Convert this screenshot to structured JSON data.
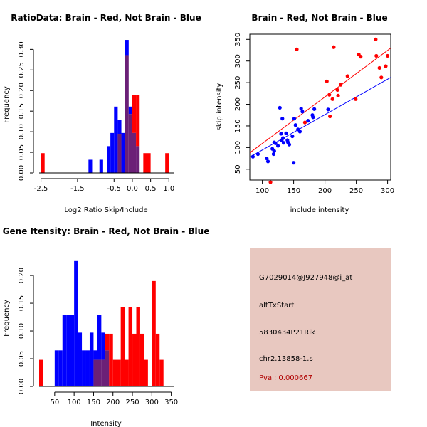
{
  "colors": {
    "red": "#ff0000",
    "blue": "#0000ff",
    "purple": "#6b2077",
    "panel_bg": "#e8c8c0",
    "pval": "#b00000"
  },
  "info_panel": {
    "probe": "G7029014@J927948@i_at",
    "event": "altTxStart",
    "gene": "5830434P21Rik",
    "locus": "chr2.13858-1.s",
    "pval": "Pval: 0.000667"
  },
  "chart_data": [
    {
      "id": "ratio",
      "type": "bar",
      "title": "RatioData: Brain - Red, Not Brain - Blue",
      "xlabel": "Log2 Ratio Skip/Include",
      "ylabel": "Frequency",
      "xlim": [
        -2.55,
        1.15
      ],
      "ylim": [
        0,
        0.33
      ],
      "xticks": [
        -2.5,
        -1.5,
        -0.5,
        0.0,
        0.5,
        1.0
      ],
      "xtick_labels": [
        "-2.5",
        "-1.5",
        "-0.5",
        "0.0",
        "0.5",
        "1.0"
      ],
      "yticks": [
        0.0,
        0.05,
        0.1,
        0.15,
        0.2,
        0.25,
        0.3
      ],
      "ytick_labels": [
        "0.00",
        "0.05",
        "0.10",
        "0.15",
        "0.20",
        "0.25",
        "0.30"
      ],
      "bin_width": 0.1,
      "series": [
        {
          "name": "Not Brain",
          "color": "blue",
          "bins": [
            [
              -1.2,
              0.032
            ],
            [
              -0.9,
              0.032
            ],
            [
              -0.7,
              0.065
            ],
            [
              -0.6,
              0.097
            ],
            [
              -0.5,
              0.161
            ],
            [
              -0.4,
              0.129
            ],
            [
              -0.3,
              0.097
            ],
            [
              -0.2,
              0.323
            ],
            [
              -0.1,
              0.161
            ],
            [
              0.0,
              0.097
            ],
            [
              0.1,
              0.065
            ]
          ]
        },
        {
          "name": "Brain",
          "color": "red",
          "bins": [
            [
              -2.5,
              0.048
            ],
            [
              -0.4,
              0.095
            ],
            [
              -0.2,
              0.286
            ],
            [
              -0.1,
              0.143
            ],
            [
              0.0,
              0.19
            ],
            [
              0.1,
              0.19
            ],
            [
              0.3,
              0.048
            ],
            [
              0.4,
              0.048
            ],
            [
              0.9,
              0.048
            ]
          ]
        }
      ]
    },
    {
      "id": "scatter",
      "type": "scatter",
      "title": "Brain - Red, Not Brain - Blue",
      "xlabel": "include intensity",
      "ylabel": "skip intensity",
      "xlim": [
        80,
        305
      ],
      "ylim": [
        25,
        362
      ],
      "xticks": [
        100,
        150,
        200,
        250,
        300
      ],
      "xtick_labels": [
        "100",
        "150",
        "200",
        "250",
        "300"
      ],
      "yticks": [
        50,
        100,
        150,
        200,
        250,
        300,
        350
      ],
      "ytick_labels": [
        "50",
        "100",
        "150",
        "200",
        "250",
        "300",
        "350"
      ],
      "series": [
        {
          "name": "Brain",
          "color": "red",
          "points": [
            [
              113,
              20
            ],
            [
              155,
              327
            ],
            [
              168,
              158
            ],
            [
              203,
              253
            ],
            [
              207,
              222
            ],
            [
              208,
              172
            ],
            [
              212,
              212
            ],
            [
              214,
              332
            ],
            [
              220,
              233
            ],
            [
              221,
              220
            ],
            [
              225,
              245
            ],
            [
              236,
              265
            ],
            [
              249,
              212
            ],
            [
              254,
              315
            ],
            [
              257,
              310
            ],
            [
              281,
              350
            ],
            [
              282,
              312
            ],
            [
              287,
              284
            ],
            [
              290,
              262
            ],
            [
              297,
              288
            ],
            [
              300,
              312
            ]
          ],
          "fit": [
            [
              80,
              88
            ],
            [
              305,
              330
            ]
          ]
        },
        {
          "name": "Not Brain",
          "color": "blue",
          "points": [
            [
              85,
              79
            ],
            [
              93,
              85
            ],
            [
              107,
              75
            ],
            [
              109,
              68
            ],
            [
              116,
              97
            ],
            [
              118,
              85
            ],
            [
              119,
              112
            ],
            [
              119,
              92
            ],
            [
              121,
              110
            ],
            [
              125,
              104
            ],
            [
              128,
              192
            ],
            [
              130,
              132
            ],
            [
              131,
              117
            ],
            [
              132,
              167
            ],
            [
              133,
              122
            ],
            [
              134,
              111
            ],
            [
              138,
              133
            ],
            [
              140,
              117
            ],
            [
              141,
              112
            ],
            [
              143,
              107
            ],
            [
              148,
              126
            ],
            [
              150,
              65
            ],
            [
              151,
              167
            ],
            [
              153,
              152
            ],
            [
              157,
              142
            ],
            [
              160,
              137
            ],
            [
              162,
              190
            ],
            [
              164,
              183
            ],
            [
              173,
              162
            ],
            [
              180,
              175
            ],
            [
              181,
              170
            ],
            [
              183,
              189
            ],
            [
              205,
              188
            ]
          ],
          "fit": [
            [
              80,
              78
            ],
            [
              305,
              262
            ]
          ]
        }
      ]
    },
    {
      "id": "intensity",
      "type": "bar",
      "title": "Gene Itensity: Brain - Red, Not Brain - Blue",
      "xlabel": "Intensity",
      "ylabel": "Frequency",
      "xlim": [
        10,
        358
      ],
      "ylim": [
        0,
        0.245
      ],
      "xticks": [
        50,
        100,
        150,
        200,
        250,
        300,
        350
      ],
      "xtick_labels": [
        "50",
        "100",
        "150",
        "200",
        "250",
        "300",
        "350"
      ],
      "yticks": [
        0.0,
        0.05,
        0.1,
        0.15,
        0.2
      ],
      "ytick_labels": [
        "0.00",
        "0.05",
        "0.10",
        "0.15",
        "0.20"
      ],
      "bin_width": 10,
      "series": [
        {
          "name": "Not Brain",
          "color": "blue",
          "bins": [
            [
              50,
              0.065
            ],
            [
              60,
              0.065
            ],
            [
              70,
              0.129
            ],
            [
              80,
              0.129
            ],
            [
              90,
              0.129
            ],
            [
              100,
              0.226
            ],
            [
              110,
              0.097
            ],
            [
              120,
              0.065
            ],
            [
              130,
              0.065
            ],
            [
              140,
              0.097
            ],
            [
              150,
              0.065
            ],
            [
              160,
              0.129
            ],
            [
              170,
              0.097
            ],
            [
              180,
              0.065
            ]
          ]
        },
        {
          "name": "Brain",
          "color": "red",
          "bins": [
            [
              10,
              0.048
            ],
            [
              150,
              0.048
            ],
            [
              160,
              0.048
            ],
            [
              170,
              0.048
            ],
            [
              180,
              0.095
            ],
            [
              190,
              0.095
            ],
            [
              200,
              0.048
            ],
            [
              210,
              0.048
            ],
            [
              220,
              0.143
            ],
            [
              230,
              0.048
            ],
            [
              240,
              0.143
            ],
            [
              250,
              0.095
            ],
            [
              260,
              0.143
            ],
            [
              270,
              0.095
            ],
            [
              280,
              0.048
            ],
            [
              300,
              0.19
            ],
            [
              310,
              0.095
            ],
            [
              320,
              0.048
            ]
          ]
        }
      ]
    }
  ]
}
